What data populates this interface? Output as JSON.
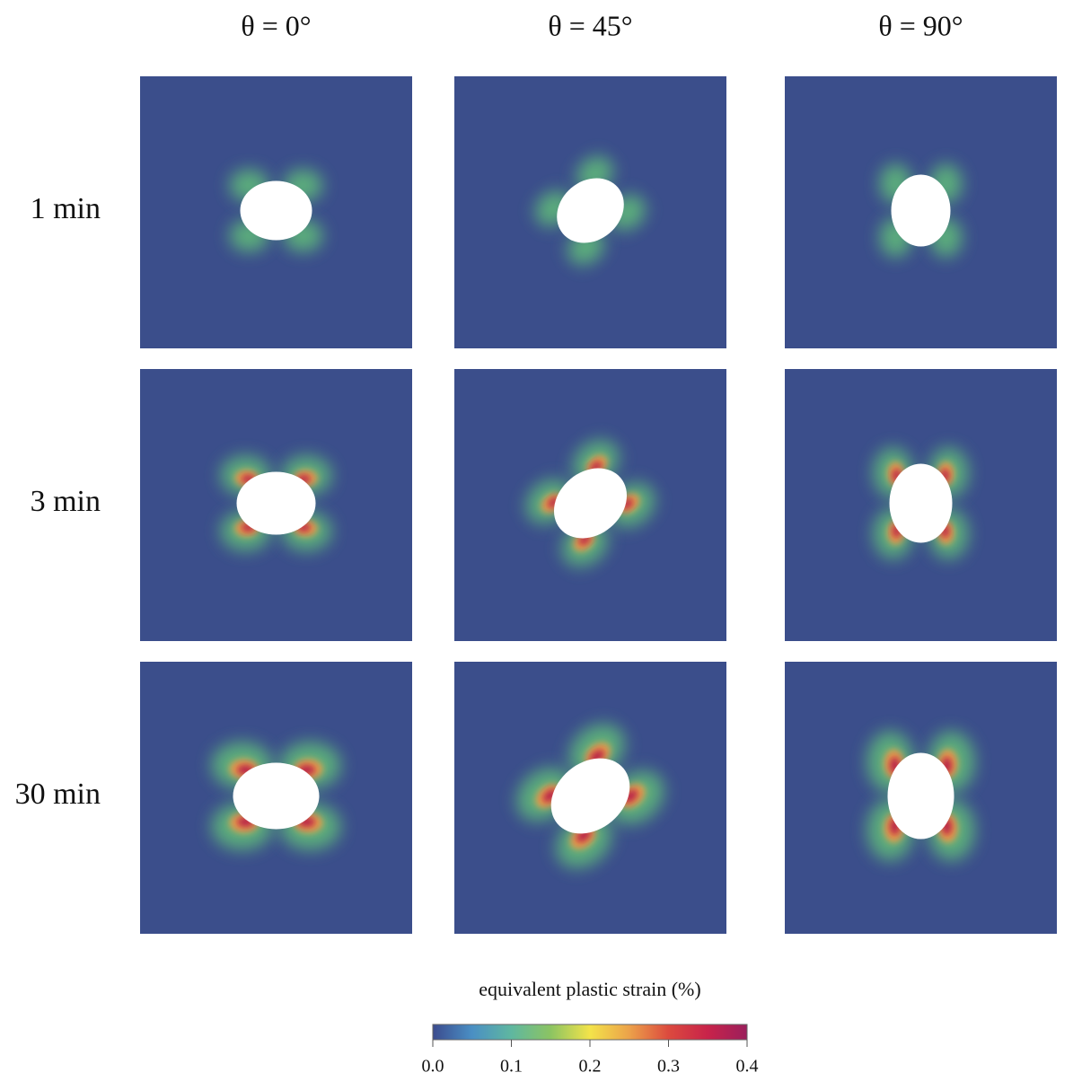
{
  "columns": [
    "θ = 0°",
    "θ = 45°",
    "θ = 90°"
  ],
  "rows": [
    "1 min",
    "3 min",
    "30 min"
  ],
  "colorbar": {
    "title": "equivalent plastic strain (%)",
    "lim": [
      0,
      0.4
    ],
    "ticks": [
      {
        "value": 0,
        "label": "0.0"
      },
      0.1,
      0.2,
      0.3,
      0.4
    ],
    "colors": [
      "#3b4b8e",
      "#4a8fc4",
      "#5fb7a0",
      "#8cc462",
      "#f3e34a",
      "#eca24a",
      "#dc4a3e",
      "#c8234a",
      "#9b1f5c"
    ]
  }
}
